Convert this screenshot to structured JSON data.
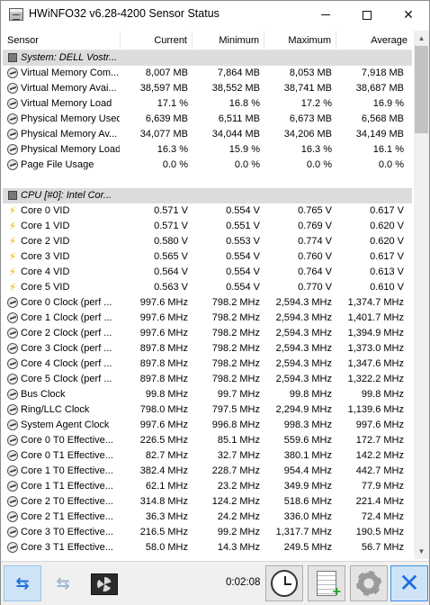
{
  "window": {
    "title": "HWiNFO32 v6.28-4200 Sensor Status"
  },
  "columns": {
    "sensor": "Sensor",
    "current": "Current",
    "minimum": "Minimum",
    "maximum": "Maximum",
    "average": "Average"
  },
  "rows": [
    {
      "type": "group",
      "icon": "chip-icon",
      "name": "System: DELL Vostr...",
      "current": "",
      "minimum": "",
      "maximum": "",
      "average": ""
    },
    {
      "type": "sensor",
      "icon": "gauge-icon",
      "name": "Virtual Memory Com...",
      "current": "8,007 MB",
      "minimum": "7,864 MB",
      "maximum": "8,053 MB",
      "average": "7,918 MB"
    },
    {
      "type": "sensor",
      "icon": "gauge-icon",
      "name": "Virtual Memory Avai...",
      "current": "38,597 MB",
      "minimum": "38,552 MB",
      "maximum": "38,741 MB",
      "average": "38,687 MB"
    },
    {
      "type": "sensor",
      "icon": "gauge-icon",
      "name": "Virtual Memory Load",
      "current": "17.1 %",
      "minimum": "16.8 %",
      "maximum": "17.2 %",
      "average": "16.9 %"
    },
    {
      "type": "sensor",
      "icon": "gauge-icon",
      "name": "Physical Memory Used",
      "current": "6,639 MB",
      "minimum": "6,511 MB",
      "maximum": "6,673 MB",
      "average": "6,568 MB"
    },
    {
      "type": "sensor",
      "icon": "gauge-icon",
      "name": "Physical Memory Av...",
      "current": "34,077 MB",
      "minimum": "34,044 MB",
      "maximum": "34,206 MB",
      "average": "34,149 MB"
    },
    {
      "type": "sensor",
      "icon": "gauge-icon",
      "name": "Physical Memory Load",
      "current": "16.3 %",
      "minimum": "15.9 %",
      "maximum": "16.3 %",
      "average": "16.1 %"
    },
    {
      "type": "sensor",
      "icon": "gauge-icon",
      "name": "Page File Usage",
      "current": "0.0 %",
      "minimum": "0.0 %",
      "maximum": "0.0 %",
      "average": "0.0 %"
    },
    {
      "type": "blank",
      "icon": "",
      "name": "",
      "current": "",
      "minimum": "",
      "maximum": "",
      "average": ""
    },
    {
      "type": "group",
      "icon": "chip-icon",
      "name": "CPU [#0]: Intel Cor...",
      "current": "",
      "minimum": "",
      "maximum": "",
      "average": ""
    },
    {
      "type": "sensor",
      "icon": "bolt-icon",
      "name": "Core 0 VID",
      "current": "0.571 V",
      "minimum": "0.554 V",
      "maximum": "0.765 V",
      "average": "0.617 V"
    },
    {
      "type": "sensor",
      "icon": "bolt-icon",
      "name": "Core 1 VID",
      "current": "0.571 V",
      "minimum": "0.551 V",
      "maximum": "0.769 V",
      "average": "0.620 V"
    },
    {
      "type": "sensor",
      "icon": "bolt-icon",
      "name": "Core 2 VID",
      "current": "0.580 V",
      "minimum": "0.553 V",
      "maximum": "0.774 V",
      "average": "0.620 V"
    },
    {
      "type": "sensor",
      "icon": "bolt-icon",
      "name": "Core 3 VID",
      "current": "0.565 V",
      "minimum": "0.554 V",
      "maximum": "0.760 V",
      "average": "0.617 V"
    },
    {
      "type": "sensor",
      "icon": "bolt-icon",
      "name": "Core 4 VID",
      "current": "0.564 V",
      "minimum": "0.554 V",
      "maximum": "0.764 V",
      "average": "0.613 V"
    },
    {
      "type": "sensor",
      "icon": "bolt-icon",
      "name": "Core 5 VID",
      "current": "0.563 V",
      "minimum": "0.554 V",
      "maximum": "0.770 V",
      "average": "0.610 V"
    },
    {
      "type": "sensor",
      "icon": "gauge-icon",
      "name": "Core 0 Clock (perf ...",
      "current": "997.6 MHz",
      "minimum": "798.2 MHz",
      "maximum": "2,594.3 MHz",
      "average": "1,374.7 MHz"
    },
    {
      "type": "sensor",
      "icon": "gauge-icon",
      "name": "Core 1 Clock (perf ...",
      "current": "997.6 MHz",
      "minimum": "798.2 MHz",
      "maximum": "2,594.3 MHz",
      "average": "1,401.7 MHz"
    },
    {
      "type": "sensor",
      "icon": "gauge-icon",
      "name": "Core 2 Clock (perf ...",
      "current": "997.6 MHz",
      "minimum": "798.2 MHz",
      "maximum": "2,594.3 MHz",
      "average": "1,394.9 MHz"
    },
    {
      "type": "sensor",
      "icon": "gauge-icon",
      "name": "Core 3 Clock (perf ...",
      "current": "897.8 MHz",
      "minimum": "798.2 MHz",
      "maximum": "2,594.3 MHz",
      "average": "1,373.0 MHz"
    },
    {
      "type": "sensor",
      "icon": "gauge-icon",
      "name": "Core 4 Clock (perf ...",
      "current": "897.8 MHz",
      "minimum": "798.2 MHz",
      "maximum": "2,594.3 MHz",
      "average": "1,347.6 MHz"
    },
    {
      "type": "sensor",
      "icon": "gauge-icon",
      "name": "Core 5 Clock (perf ...",
      "current": "897.8 MHz",
      "minimum": "798.2 MHz",
      "maximum": "2,594.3 MHz",
      "average": "1,322.2 MHz"
    },
    {
      "type": "sensor",
      "icon": "gauge-icon",
      "name": "Bus Clock",
      "current": "99.8 MHz",
      "minimum": "99.7 MHz",
      "maximum": "99.8 MHz",
      "average": "99.8 MHz"
    },
    {
      "type": "sensor",
      "icon": "gauge-icon",
      "name": "Ring/LLC Clock",
      "current": "798.0 MHz",
      "minimum": "797.5 MHz",
      "maximum": "2,294.9 MHz",
      "average": "1,139.6 MHz"
    },
    {
      "type": "sensor",
      "icon": "gauge-icon",
      "name": "System Agent Clock",
      "current": "997.6 MHz",
      "minimum": "996.8 MHz",
      "maximum": "998.3 MHz",
      "average": "997.6 MHz"
    },
    {
      "type": "sensor",
      "icon": "gauge-icon",
      "name": "Core 0 T0 Effective...",
      "current": "226.5 MHz",
      "minimum": "85.1 MHz",
      "maximum": "559.6 MHz",
      "average": "172.7 MHz"
    },
    {
      "type": "sensor",
      "icon": "gauge-icon",
      "name": "Core 0 T1 Effective...",
      "current": "82.7 MHz",
      "minimum": "32.7 MHz",
      "maximum": "380.1 MHz",
      "average": "142.2 MHz"
    },
    {
      "type": "sensor",
      "icon": "gauge-icon",
      "name": "Core 1 T0 Effective...",
      "current": "382.4 MHz",
      "minimum": "228.7 MHz",
      "maximum": "954.4 MHz",
      "average": "442.7 MHz"
    },
    {
      "type": "sensor",
      "icon": "gauge-icon",
      "name": "Core 1 T1 Effective...",
      "current": "62.1 MHz",
      "minimum": "23.2 MHz",
      "maximum": "349.9 MHz",
      "average": "77.9 MHz"
    },
    {
      "type": "sensor",
      "icon": "gauge-icon",
      "name": "Core 2 T0 Effective...",
      "current": "314.8 MHz",
      "minimum": "124.2 MHz",
      "maximum": "518.6 MHz",
      "average": "221.4 MHz"
    },
    {
      "type": "sensor",
      "icon": "gauge-icon",
      "name": "Core 2 T1 Effective...",
      "current": "36.3 MHz",
      "minimum": "24.2 MHz",
      "maximum": "336.0 MHz",
      "average": "72.4 MHz"
    },
    {
      "type": "sensor",
      "icon": "gauge-icon",
      "name": "Core 3 T0 Effective...",
      "current": "216.5 MHz",
      "minimum": "99.2 MHz",
      "maximum": "1,317.7 MHz",
      "average": "190.5 MHz"
    },
    {
      "type": "sensor",
      "icon": "gauge-icon",
      "name": "Core 3 T1 Effective...",
      "current": "58.0 MHz",
      "minimum": "14.3 MHz",
      "maximum": "249.5 MHz",
      "average": "56.7 MHz"
    }
  ],
  "toolbar": {
    "elapsed_time": "0:02:08"
  },
  "colors": {
    "group_row_bg": "#dcdcdc",
    "toolbar_bg": "#f0f0f0",
    "accent_blue": "#1e6fd9"
  }
}
